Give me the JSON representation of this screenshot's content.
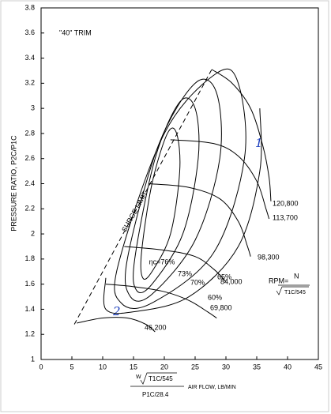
{
  "chart_data": {
    "type": "line",
    "xlabel": "AIR FLOW, LB/MIN",
    "xlabel_num_w": "W",
    "xlabel_num_t": "T1C/545",
    "xlabel_den": "P1C/28.4",
    "ylabel": "PRESSURE RATIO, P2C/P1C",
    "annotations": {
      "trim": "\"40\" TRIM",
      "rpm": "RPM=",
      "rpm_num": "N",
      "rpm_den": "T1C/545",
      "hand1": "1",
      "hand2": "2"
    },
    "xlim": [
      0,
      45
    ],
    "xticks": [
      0,
      5,
      10,
      15,
      20,
      25,
      30,
      35,
      40,
      45
    ],
    "ylim": [
      1,
      3.8
    ],
    "yticks": [
      1,
      1.2,
      1.4,
      1.6,
      1.8,
      2,
      2.2,
      2.4,
      2.6,
      2.8,
      3,
      3.2,
      3.4,
      3.6,
      3.8
    ],
    "grid": false,
    "series": [
      {
        "name": "SURGE LIMIT",
        "color": "#000000",
        "dashed": true,
        "x": [
          5.4,
          27.7
        ],
        "values": [
          1.28,
          3.31
        ]
      },
      {
        "name": "46,200",
        "color": "#000000",
        "x": [
          5.8,
          10,
          14,
          17,
          18.5
        ],
        "values": [
          1.29,
          1.33,
          1.33,
          1.28,
          1.22
        ]
      },
      {
        "name": "69,800",
        "color": "#000000",
        "x": [
          10.5,
          15,
          20,
          24,
          27,
          28.5
        ],
        "values": [
          1.6,
          1.58,
          1.54,
          1.47,
          1.38,
          1.33
        ]
      },
      {
        "name": "84,000",
        "color": "#000000",
        "x": [
          13.5,
          20,
          25,
          28,
          30
        ],
        "values": [
          1.9,
          1.87,
          1.82,
          1.72,
          1.62
        ]
      },
      {
        "name": "98,300",
        "color": "#000000",
        "x": [
          17.5,
          24,
          29,
          32,
          33.5,
          34
        ],
        "values": [
          2.4,
          2.37,
          2.28,
          2.1,
          1.9,
          1.82
        ]
      },
      {
        "name": "113,700",
        "color": "#000000",
        "x": [
          21,
          28,
          32,
          35,
          36.5,
          37
        ],
        "values": [
          2.75,
          2.72,
          2.62,
          2.42,
          2.2,
          2.12
        ]
      },
      {
        "name": "120,800",
        "color": "#000000",
        "x": [
          27.7,
          31,
          34,
          36,
          37,
          37.3
        ],
        "values": [
          3.31,
          3.2,
          3.0,
          2.7,
          2.45,
          2.26
        ]
      },
      {
        "name": "ηc=76%",
        "color": "#000000",
        "closed": true,
        "x": [
          16.5,
          18,
          21,
          22.5,
          22,
          20.5,
          18,
          16.3
        ],
        "values": [
          1.65,
          1.7,
          2.0,
          2.5,
          2.8,
          2.8,
          2.4,
          1.85
        ]
      },
      {
        "name": "73%",
        "color": "#000000",
        "closed": true,
        "x": [
          15.5,
          18,
          23,
          25.5,
          25,
          22.5,
          18.5,
          15.2
        ],
        "values": [
          1.55,
          1.6,
          2.0,
          2.6,
          3.0,
          3.05,
          2.6,
          1.8
        ]
      },
      {
        "name": "70%",
        "color": "#000000",
        "closed": true,
        "x": [
          14.5,
          18,
          25,
          29,
          28.5,
          25,
          19,
          14
        ],
        "values": [
          1.5,
          1.52,
          1.95,
          2.6,
          3.12,
          3.2,
          2.7,
          1.8
        ]
      },
      {
        "name": "65%",
        "color": "#000000",
        "closed": true,
        "x": [
          13,
          18,
          28,
          33,
          32,
          28.5,
          20,
          12.5
        ],
        "values": [
          1.45,
          1.45,
          1.85,
          2.6,
          3.2,
          3.28,
          2.8,
          1.75
        ]
      },
      {
        "name": "60%",
        "color": "#000000",
        "x": [
          10.5,
          10.5,
          15,
          24,
          32,
          35.5,
          35.5
        ],
        "values": [
          1.65,
          1.4,
          1.38,
          1.5,
          1.9,
          2.5,
          3.0
        ]
      }
    ]
  }
}
